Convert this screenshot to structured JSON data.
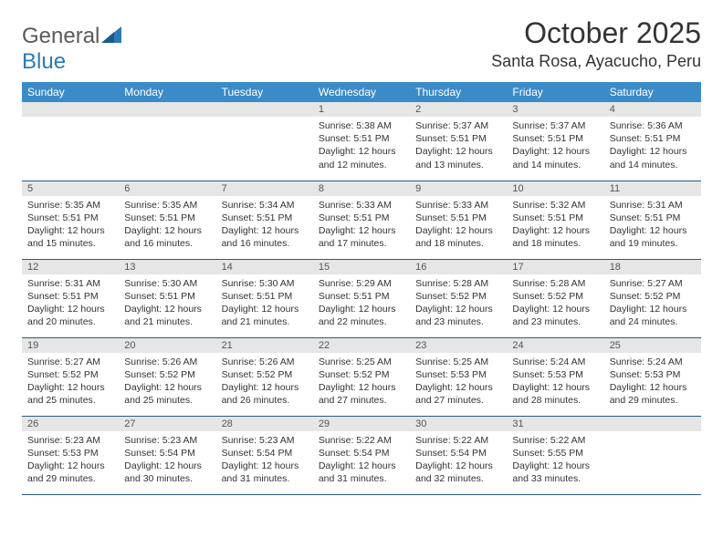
{
  "brand": {
    "part1": "General",
    "part2": "Blue"
  },
  "title": "October 2025",
  "location": "Santa Rosa, Ayacucho, Peru",
  "colors": {
    "header_bg": "#3b8bc9",
    "header_text": "#ffffff",
    "day_strip_bg": "#e6e6e6",
    "row_border": "#2a5a8a",
    "text": "#333333",
    "brand_gray": "#5a5a5a",
    "brand_blue": "#2a7ab8"
  },
  "typography": {
    "title_fontsize": 32,
    "location_fontsize": 18,
    "header_fontsize": 12,
    "body_fontsize": 10.5
  },
  "weekdays": [
    "Sunday",
    "Monday",
    "Tuesday",
    "Wednesday",
    "Thursday",
    "Friday",
    "Saturday"
  ],
  "weeks": [
    [
      null,
      null,
      null,
      {
        "day": "1",
        "sunrise": "Sunrise: 5:38 AM",
        "sunset": "Sunset: 5:51 PM",
        "daylight": "Daylight: 12 hours and 12 minutes."
      },
      {
        "day": "2",
        "sunrise": "Sunrise: 5:37 AM",
        "sunset": "Sunset: 5:51 PM",
        "daylight": "Daylight: 12 hours and 13 minutes."
      },
      {
        "day": "3",
        "sunrise": "Sunrise: 5:37 AM",
        "sunset": "Sunset: 5:51 PM",
        "daylight": "Daylight: 12 hours and 14 minutes."
      },
      {
        "day": "4",
        "sunrise": "Sunrise: 5:36 AM",
        "sunset": "Sunset: 5:51 PM",
        "daylight": "Daylight: 12 hours and 14 minutes."
      }
    ],
    [
      {
        "day": "5",
        "sunrise": "Sunrise: 5:35 AM",
        "sunset": "Sunset: 5:51 PM",
        "daylight": "Daylight: 12 hours and 15 minutes."
      },
      {
        "day": "6",
        "sunrise": "Sunrise: 5:35 AM",
        "sunset": "Sunset: 5:51 PM",
        "daylight": "Daylight: 12 hours and 16 minutes."
      },
      {
        "day": "7",
        "sunrise": "Sunrise: 5:34 AM",
        "sunset": "Sunset: 5:51 PM",
        "daylight": "Daylight: 12 hours and 16 minutes."
      },
      {
        "day": "8",
        "sunrise": "Sunrise: 5:33 AM",
        "sunset": "Sunset: 5:51 PM",
        "daylight": "Daylight: 12 hours and 17 minutes."
      },
      {
        "day": "9",
        "sunrise": "Sunrise: 5:33 AM",
        "sunset": "Sunset: 5:51 PM",
        "daylight": "Daylight: 12 hours and 18 minutes."
      },
      {
        "day": "10",
        "sunrise": "Sunrise: 5:32 AM",
        "sunset": "Sunset: 5:51 PM",
        "daylight": "Daylight: 12 hours and 18 minutes."
      },
      {
        "day": "11",
        "sunrise": "Sunrise: 5:31 AM",
        "sunset": "Sunset: 5:51 PM",
        "daylight": "Daylight: 12 hours and 19 minutes."
      }
    ],
    [
      {
        "day": "12",
        "sunrise": "Sunrise: 5:31 AM",
        "sunset": "Sunset: 5:51 PM",
        "daylight": "Daylight: 12 hours and 20 minutes."
      },
      {
        "day": "13",
        "sunrise": "Sunrise: 5:30 AM",
        "sunset": "Sunset: 5:51 PM",
        "daylight": "Daylight: 12 hours and 21 minutes."
      },
      {
        "day": "14",
        "sunrise": "Sunrise: 5:30 AM",
        "sunset": "Sunset: 5:51 PM",
        "daylight": "Daylight: 12 hours and 21 minutes."
      },
      {
        "day": "15",
        "sunrise": "Sunrise: 5:29 AM",
        "sunset": "Sunset: 5:51 PM",
        "daylight": "Daylight: 12 hours and 22 minutes."
      },
      {
        "day": "16",
        "sunrise": "Sunrise: 5:28 AM",
        "sunset": "Sunset: 5:52 PM",
        "daylight": "Daylight: 12 hours and 23 minutes."
      },
      {
        "day": "17",
        "sunrise": "Sunrise: 5:28 AM",
        "sunset": "Sunset: 5:52 PM",
        "daylight": "Daylight: 12 hours and 23 minutes."
      },
      {
        "day": "18",
        "sunrise": "Sunrise: 5:27 AM",
        "sunset": "Sunset: 5:52 PM",
        "daylight": "Daylight: 12 hours and 24 minutes."
      }
    ],
    [
      {
        "day": "19",
        "sunrise": "Sunrise: 5:27 AM",
        "sunset": "Sunset: 5:52 PM",
        "daylight": "Daylight: 12 hours and 25 minutes."
      },
      {
        "day": "20",
        "sunrise": "Sunrise: 5:26 AM",
        "sunset": "Sunset: 5:52 PM",
        "daylight": "Daylight: 12 hours and 25 minutes."
      },
      {
        "day": "21",
        "sunrise": "Sunrise: 5:26 AM",
        "sunset": "Sunset: 5:52 PM",
        "daylight": "Daylight: 12 hours and 26 minutes."
      },
      {
        "day": "22",
        "sunrise": "Sunrise: 5:25 AM",
        "sunset": "Sunset: 5:52 PM",
        "daylight": "Daylight: 12 hours and 27 minutes."
      },
      {
        "day": "23",
        "sunrise": "Sunrise: 5:25 AM",
        "sunset": "Sunset: 5:53 PM",
        "daylight": "Daylight: 12 hours and 27 minutes."
      },
      {
        "day": "24",
        "sunrise": "Sunrise: 5:24 AM",
        "sunset": "Sunset: 5:53 PM",
        "daylight": "Daylight: 12 hours and 28 minutes."
      },
      {
        "day": "25",
        "sunrise": "Sunrise: 5:24 AM",
        "sunset": "Sunset: 5:53 PM",
        "daylight": "Daylight: 12 hours and 29 minutes."
      }
    ],
    [
      {
        "day": "26",
        "sunrise": "Sunrise: 5:23 AM",
        "sunset": "Sunset: 5:53 PM",
        "daylight": "Daylight: 12 hours and 29 minutes."
      },
      {
        "day": "27",
        "sunrise": "Sunrise: 5:23 AM",
        "sunset": "Sunset: 5:54 PM",
        "daylight": "Daylight: 12 hours and 30 minutes."
      },
      {
        "day": "28",
        "sunrise": "Sunrise: 5:23 AM",
        "sunset": "Sunset: 5:54 PM",
        "daylight": "Daylight: 12 hours and 31 minutes."
      },
      {
        "day": "29",
        "sunrise": "Sunrise: 5:22 AM",
        "sunset": "Sunset: 5:54 PM",
        "daylight": "Daylight: 12 hours and 31 minutes."
      },
      {
        "day": "30",
        "sunrise": "Sunrise: 5:22 AM",
        "sunset": "Sunset: 5:54 PM",
        "daylight": "Daylight: 12 hours and 32 minutes."
      },
      {
        "day": "31",
        "sunrise": "Sunrise: 5:22 AM",
        "sunset": "Sunset: 5:55 PM",
        "daylight": "Daylight: 12 hours and 33 minutes."
      },
      null
    ]
  ]
}
